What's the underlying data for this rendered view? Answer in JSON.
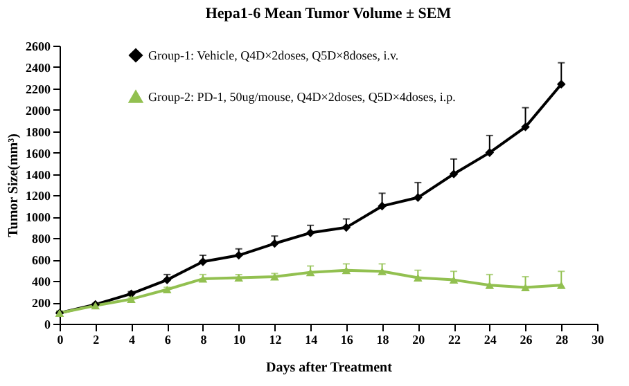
{
  "chart_data": {
    "type": "line",
    "title": "Hepa1-6 Mean Tumor Volume ± SEM",
    "xlabel": "Days after Treatment",
    "ylabel": "Tumor Size(mm³)",
    "x": [
      0,
      2,
      4,
      6,
      8,
      10,
      12,
      14,
      16,
      18,
      20,
      22,
      24,
      26,
      28
    ],
    "series": [
      {
        "name": "Group-1: Vehicle, Q4D×2doses, Q5D×8doses, i.v.",
        "color": "#000000",
        "marker": "diamond",
        "values": [
          100,
          180,
          280,
          410,
          580,
          640,
          750,
          850,
          900,
          1100,
          1180,
          1400,
          1600,
          1840,
          2240
        ],
        "errors": [
          [
            100,
            110
          ],
          [
            180,
            190
          ],
          [
            280,
            300
          ],
          [
            410,
            460
          ],
          [
            580,
            640
          ],
          [
            640,
            700
          ],
          [
            750,
            820
          ],
          [
            850,
            920
          ],
          [
            900,
            980
          ],
          [
            1100,
            1220
          ],
          [
            1180,
            1320
          ],
          [
            1400,
            1540
          ],
          [
            1600,
            1760
          ],
          [
            1840,
            2020
          ],
          [
            2240,
            2440
          ]
        ]
      },
      {
        "name": "Group-2: PD-1, 50ug/mouse, Q4D×2doses, Q5D×4doses, i.p.",
        "color": "#92c050",
        "marker": "triangle",
        "values": [
          100,
          170,
          230,
          320,
          420,
          430,
          440,
          480,
          500,
          490,
          430,
          410,
          360,
          340,
          360
        ],
        "errors": [
          [
            100,
            120
          ],
          [
            170,
            190
          ],
          [
            230,
            250
          ],
          [
            320,
            340
          ],
          [
            420,
            460
          ],
          [
            430,
            460
          ],
          [
            440,
            470
          ],
          [
            480,
            540
          ],
          [
            500,
            560
          ],
          [
            490,
            560
          ],
          [
            430,
            500
          ],
          [
            410,
            490
          ],
          [
            360,
            460
          ],
          [
            340,
            440
          ],
          [
            360,
            490
          ]
        ]
      }
    ],
    "xlim": [
      0,
      30
    ],
    "xticks": [
      0,
      2,
      4,
      6,
      8,
      10,
      12,
      14,
      16,
      18,
      20,
      22,
      24,
      26,
      28,
      30
    ],
    "ylim": [
      0,
      2600
    ],
    "yticks": [
      0,
      200,
      400,
      600,
      800,
      1000,
      1200,
      1400,
      1600,
      1800,
      2000,
      2200,
      2400,
      2600
    ],
    "grid": false,
    "legend": "top left"
  }
}
